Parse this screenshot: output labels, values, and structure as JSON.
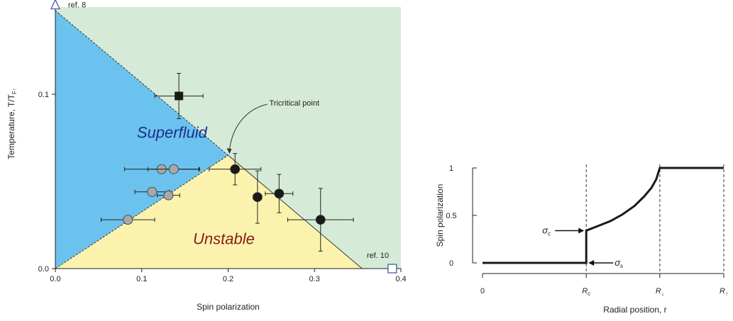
{
  "chart_data": [
    {
      "type": "scatter",
      "title": "",
      "xlabel": "Spin polarization",
      "ylabel": "Temperature, T/T_F↑",
      "ylabel_main": "Temperature, T/T",
      "ylabel_sub": "F↑",
      "xlim": [
        0,
        0.4
      ],
      "ylim": [
        0,
        0.15
      ],
      "xticks": [
        0.0,
        0.1,
        0.2,
        0.3,
        0.4
      ],
      "xtick_labels": [
        "0.0",
        "0.1",
        "0.2",
        "0.3",
        "0.4"
      ],
      "yticks": [
        0.0,
        0.1
      ],
      "ytick_labels": [
        "0.0",
        "0.1"
      ],
      "regions": [
        {
          "label": "Superfluid",
          "color": "#6cc2ee",
          "text_color": "#1c2f8a",
          "polygon": [
            [
              0,
              0.0
            ],
            [
              0,
              0.148
            ],
            [
              0.2,
              0.065
            ]
          ]
        },
        {
          "label": "Unstable",
          "color": "#fbf3ad",
          "text_color": "#8a1a1a",
          "polygon": [
            [
              0,
              0.0
            ],
            [
              0.2,
              0.065
            ],
            [
              0.355,
              0.0
            ]
          ]
        }
      ],
      "background_color": "#d6ebd7",
      "boundary_lines": [
        {
          "points": [
            [
              0,
              0.148
            ],
            [
              0.2,
              0.065
            ]
          ],
          "style": "dashed"
        },
        {
          "points": [
            [
              0,
              0.0
            ],
            [
              0.2,
              0.065
            ]
          ],
          "style": "dashed"
        },
        {
          "points": [
            [
              0.2,
              0.065
            ],
            [
              0.355,
              0.0
            ]
          ],
          "style": "solid"
        }
      ],
      "series": [
        {
          "marker": "circle",
          "color": "#a8a8a8",
          "points": [
            {
              "x": 0.123,
              "y": 0.057,
              "xerr": 0.043,
              "yerr": 0
            },
            {
              "x": 0.137,
              "y": 0.057,
              "xerr": 0.03,
              "yerr": 0
            },
            {
              "x": 0.112,
              "y": 0.044,
              "xerr": 0.02,
              "yerr": 0
            },
            {
              "x": 0.131,
              "y": 0.042,
              "xerr": 0.013,
              "yerr": 0
            },
            {
              "x": 0.084,
              "y": 0.028,
              "xerr": 0.031,
              "yerr": 0
            }
          ]
        },
        {
          "marker": "circle",
          "color": "#1a1a1a",
          "points": [
            {
              "x": 0.208,
              "y": 0.057,
              "xerr": 0.03,
              "yerr": 0.009
            },
            {
              "x": 0.234,
              "y": 0.041,
              "xerr": 0.005,
              "yerr": 0.015
            },
            {
              "x": 0.259,
              "y": 0.043,
              "xerr": 0.016,
              "yerr": 0.011
            },
            {
              "x": 0.307,
              "y": 0.028,
              "xerr": 0.038,
              "yerr": 0.018
            }
          ]
        },
        {
          "marker": "square",
          "color": "#1a1a1a",
          "points": [
            {
              "x": 0.143,
              "y": 0.099,
              "xerr": 0.028,
              "yerr": 0.013
            }
          ]
        }
      ],
      "ref_markers": [
        {
          "label": "ref. 8",
          "marker": "triangle-open",
          "color": "#3d4fa0",
          "x": 0.0,
          "y": 0.151
        },
        {
          "label": "ref. 10",
          "marker": "square-open",
          "color": "#3d4fa0",
          "x": 0.39,
          "y": 0.0
        }
      ],
      "annotations": [
        {
          "text": "Tricritical point",
          "x": 0.2,
          "y": 0.065
        }
      ]
    },
    {
      "type": "line",
      "title": "",
      "xlabel": "Radial position, r",
      "ylabel": "Spin polarization",
      "ylim": [
        0,
        1
      ],
      "yticks": [
        0,
        0.5,
        1
      ],
      "ytick_labels": [
        "0",
        "0.5",
        "1"
      ],
      "xticks": [
        {
          "main": "0",
          "sub": "",
          "x": 0
        },
        {
          "main": "R",
          "sub": "c",
          "x": 0.43
        },
        {
          "main": "R",
          "sub": "↓",
          "x": 0.735
        },
        {
          "main": "R",
          "sub": "↑",
          "x": 1.0
        }
      ],
      "vlines": [
        0.43,
        0.735,
        1.0
      ],
      "curve": [
        [
          0,
          0
        ],
        [
          0.43,
          0
        ],
        [
          0.43,
          0.34
        ],
        [
          0.48,
          0.39
        ],
        [
          0.53,
          0.44
        ],
        [
          0.58,
          0.51
        ],
        [
          0.63,
          0.6
        ],
        [
          0.67,
          0.7
        ],
        [
          0.7,
          0.79
        ],
        [
          0.72,
          0.88
        ],
        [
          0.735,
          1.0
        ],
        [
          1.0,
          1.0
        ]
      ],
      "annotations": [
        {
          "text_main": "σ",
          "text_sub": "c",
          "x": 0.43,
          "y": 0.34,
          "side": "left"
        },
        {
          "text_main": "σ",
          "text_sub": "s",
          "x": 0.43,
          "y": 0.0,
          "side": "right"
        }
      ]
    }
  ]
}
